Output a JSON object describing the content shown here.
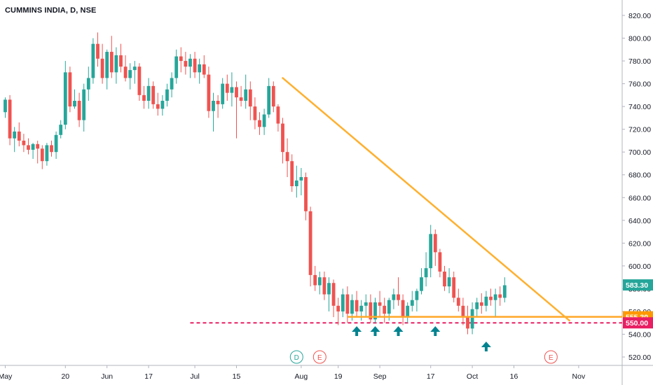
{
  "header": {
    "title": "CUMMINS INDIA, D, NSE"
  },
  "chart_data": {
    "type": "candlestick",
    "symbol": "CUMMINS INDIA",
    "interval": "D",
    "exchange": "NSE",
    "ylim": [
      512,
      826
    ],
    "y_ticks": [
      "520.00",
      "540.00",
      "560.00",
      "580.00",
      "600.00",
      "620.00",
      "640.00",
      "660.00",
      "680.00",
      "700.00",
      "720.00",
      "740.00",
      "760.00",
      "780.00",
      "800.00",
      "820.00"
    ],
    "x_ticks": [
      {
        "label": "May",
        "i": 0
      },
      {
        "label": "20",
        "i": 13
      },
      {
        "label": "Jun",
        "i": 22
      },
      {
        "label": "17",
        "i": 31
      },
      {
        "label": "Jul",
        "i": 41
      },
      {
        "label": "15",
        "i": 50
      },
      {
        "label": "Aug",
        "i": 64
      },
      {
        "label": "19",
        "i": 72
      },
      {
        "label": "Sep",
        "i": 81
      },
      {
        "label": "17",
        "i": 92
      },
      {
        "label": "Oct",
        "i": 101
      },
      {
        "label": "16",
        "i": 110
      },
      {
        "label": "Nov",
        "i": 124
      }
    ],
    "candles": [
      [
        735,
        748,
        730,
        746
      ],
      [
        746,
        750,
        706,
        712
      ],
      [
        712,
        722,
        700,
        718
      ],
      [
        718,
        726,
        705,
        710
      ],
      [
        710,
        716,
        700,
        706
      ],
      [
        706,
        712,
        698,
        702
      ],
      [
        702,
        708,
        694,
        707
      ],
      [
        707,
        710,
        690,
        703
      ],
      [
        703,
        706,
        685,
        692
      ],
      [
        692,
        708,
        688,
        706
      ],
      [
        706,
        710,
        696,
        700
      ],
      [
        700,
        718,
        694,
        715
      ],
      [
        715,
        728,
        712,
        724
      ],
      [
        724,
        780,
        720,
        770
      ],
      [
        770,
        775,
        735,
        740
      ],
      [
        740,
        755,
        738,
        745
      ],
      [
        745,
        752,
        722,
        728
      ],
      [
        728,
        760,
        718,
        755
      ],
      [
        755,
        775,
        745,
        765
      ],
      [
        765,
        800,
        760,
        795
      ],
      [
        795,
        805,
        775,
        782
      ],
      [
        782,
        795,
        760,
        765
      ],
      [
        765,
        790,
        755,
        788
      ],
      [
        788,
        802,
        765,
        770
      ],
      [
        770,
        792,
        760,
        785
      ],
      [
        785,
        795,
        770,
        775
      ],
      [
        775,
        785,
        762,
        765
      ],
      [
        765,
        778,
        755,
        772
      ],
      [
        772,
        780,
        760,
        775
      ],
      [
        775,
        778,
        745,
        750
      ],
      [
        750,
        758,
        738,
        745
      ],
      [
        745,
        765,
        738,
        758
      ],
      [
        758,
        762,
        738,
        742
      ],
      [
        742,
        752,
        732,
        738
      ],
      [
        738,
        750,
        732,
        745
      ],
      [
        745,
        760,
        740,
        755
      ],
      [
        755,
        770,
        748,
        765
      ],
      [
        765,
        790,
        760,
        784
      ],
      [
        784,
        792,
        770,
        780
      ],
      [
        780,
        788,
        768,
        775
      ],
      [
        775,
        786,
        765,
        782
      ],
      [
        782,
        788,
        765,
        770
      ],
      [
        770,
        782,
        760,
        777
      ],
      [
        777,
        785,
        765,
        768
      ],
      [
        768,
        775,
        730,
        736
      ],
      [
        736,
        752,
        718,
        745
      ],
      [
        745,
        750,
        730,
        742
      ],
      [
        742,
        765,
        738,
        760
      ],
      [
        760,
        768,
        745,
        752
      ],
      [
        752,
        770,
        740,
        757
      ],
      [
        757,
        762,
        712,
        748
      ],
      [
        748,
        758,
        740,
        745
      ],
      [
        745,
        768,
        738,
        755
      ],
      [
        755,
        762,
        728,
        740
      ],
      [
        740,
        748,
        720,
        728
      ],
      [
        728,
        735,
        715,
        722
      ],
      [
        722,
        738,
        715,
        733
      ],
      [
        733,
        765,
        730,
        758
      ],
      [
        758,
        762,
        735,
        740
      ],
      [
        740,
        742,
        718,
        725
      ],
      [
        725,
        730,
        690,
        700
      ],
      [
        700,
        712,
        678,
        692
      ],
      [
        692,
        698,
        665,
        670
      ],
      [
        670,
        688,
        660,
        675
      ],
      [
        675,
        686,
        662,
        678
      ],
      [
        678,
        682,
        640,
        648
      ],
      [
        648,
        652,
        582,
        592
      ],
      [
        592,
        600,
        578,
        583
      ],
      [
        583,
        595,
        575,
        590
      ],
      [
        590,
        595,
        570,
        575
      ],
      [
        575,
        590,
        560,
        585
      ],
      [
        585,
        588,
        555,
        565
      ],
      [
        565,
        572,
        548,
        560
      ],
      [
        560,
        580,
        555,
        575
      ],
      [
        575,
        582,
        550,
        558
      ],
      [
        558,
        575,
        552,
        570
      ],
      [
        570,
        578,
        555,
        560
      ],
      [
        560,
        570,
        552,
        565
      ],
      [
        565,
        575,
        555,
        568
      ],
      [
        568,
        575,
        550,
        553
      ],
      [
        553,
        572,
        550,
        568
      ],
      [
        568,
        578,
        555,
        565
      ],
      [
        565,
        572,
        550,
        558
      ],
      [
        558,
        572,
        552,
        570
      ],
      [
        570,
        580,
        562,
        575
      ],
      [
        575,
        590,
        565,
        570
      ],
      [
        570,
        575,
        548,
        555
      ],
      [
        555,
        568,
        550,
        565
      ],
      [
        565,
        578,
        560,
        570
      ],
      [
        570,
        580,
        560,
        578
      ],
      [
        578,
        598,
        575,
        590
      ],
      [
        590,
        612,
        582,
        598
      ],
      [
        598,
        636,
        590,
        628
      ],
      [
        628,
        632,
        600,
        612
      ],
      [
        612,
        615,
        590,
        595
      ],
      [
        595,
        600,
        578,
        582
      ],
      [
        582,
        598,
        576,
        590
      ],
      [
        590,
        595,
        568,
        572
      ],
      [
        572,
        580,
        560,
        565
      ],
      [
        565,
        572,
        548,
        556
      ],
      [
        556,
        565,
        540,
        545
      ],
      [
        545,
        568,
        540,
        562
      ],
      [
        562,
        572,
        555,
        568
      ],
      [
        568,
        576,
        558,
        565
      ],
      [
        565,
        578,
        560,
        573
      ],
      [
        573,
        580,
        565,
        570
      ],
      [
        570,
        580,
        555,
        575
      ],
      [
        575,
        582,
        565,
        572
      ],
      [
        572,
        590,
        568,
        583
      ]
    ],
    "trendline": {
      "from": {
        "i": 60,
        "price": 765
      },
      "to": {
        "i": 122,
        "price": 552
      }
    },
    "support_line": {
      "price": 555.3,
      "from_i": 74
    },
    "dashed_level": {
      "price": 550,
      "from_i": 40
    },
    "arrows_i": [
      76,
      80,
      85,
      93,
      104
    ],
    "price_labels": [
      {
        "value": "583.30",
        "price": 583.3,
        "color": "#26a69a"
      },
      {
        "value": "555.30",
        "price": 555.3,
        "color": "#ff9800"
      },
      {
        "value": "550.00",
        "price": 550,
        "color": "#e91e63"
      }
    ],
    "event_markers": [
      {
        "label": "D",
        "i": 63,
        "color": "#26a69a"
      },
      {
        "label": "E",
        "i": 68,
        "color": "#ef5350"
      },
      {
        "label": "E",
        "i": 118,
        "color": "#ef5350"
      }
    ],
    "colors": {
      "up": "#26a69a",
      "down": "#ef5350",
      "trend": "#ffb02e",
      "support": "#ffa726",
      "level": "#e91e63"
    }
  }
}
